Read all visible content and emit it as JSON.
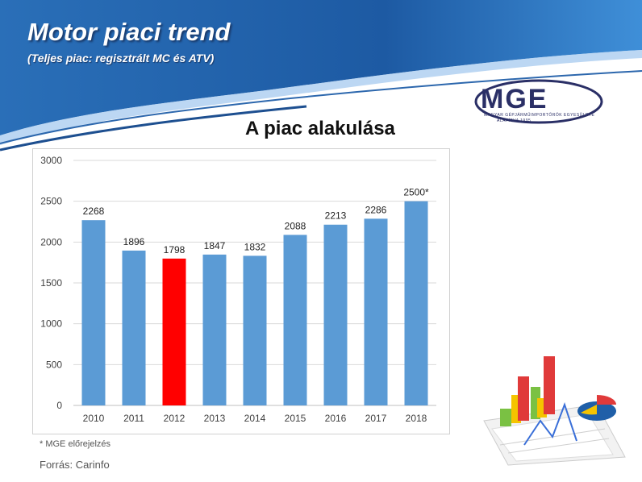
{
  "header": {
    "title": "Motor piaci trend",
    "subtitle": "(Teljes piac: regisztrált MC és ATV)"
  },
  "logo": {
    "text": "MGE",
    "tagline": "MAGYAR GÉPJÁRMŰIMPORTŐRÖK EGYESÜLETE",
    "founded": "ALAPÍTVA 1995"
  },
  "chart_data": {
    "type": "bar",
    "title": "A piac alakulása",
    "categories": [
      "2010",
      "2011",
      "2012",
      "2013",
      "2014",
      "2015",
      "2016",
      "2017",
      "2018"
    ],
    "values": [
      2268,
      1896,
      1798,
      1847,
      1832,
      2088,
      2213,
      2286,
      2500
    ],
    "data_labels": [
      "2268",
      "1896",
      "1798",
      "1847",
      "1832",
      "2088",
      "2213",
      "2286",
      "2500*"
    ],
    "highlight_index": 2,
    "bar_color": "#5b9bd5",
    "highlight_color": "#ff0000",
    "ylim": [
      0,
      3000
    ],
    "yticks": [
      0,
      500,
      1000,
      1500,
      2000,
      2500,
      3000
    ],
    "grid": true
  },
  "footnote": "* MGE előrejelzés",
  "source": "Forrás: Carinfo",
  "colors": {
    "header_blue": "#1f5fa8",
    "accent": "#3a8ad8"
  }
}
